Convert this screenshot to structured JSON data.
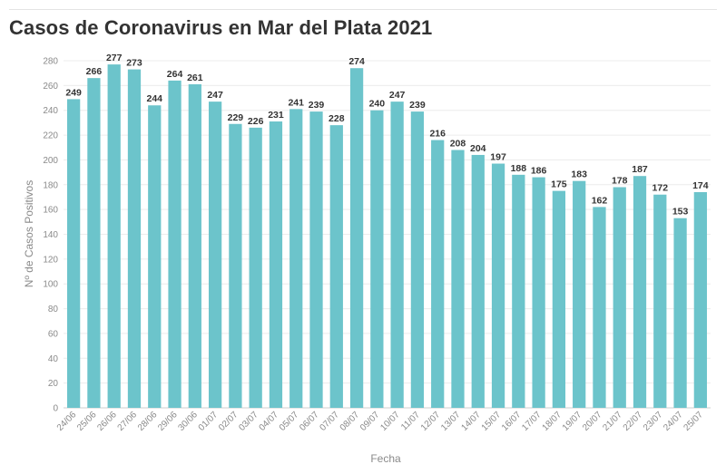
{
  "chart_data": {
    "type": "bar",
    "title": "Casos de Coronavirus en Mar del Plata 2021",
    "xlabel": "Fecha",
    "ylabel": "Nº de Casos Positivos",
    "ylim": [
      0,
      280
    ],
    "yticks": [
      0,
      20,
      40,
      60,
      80,
      100,
      120,
      140,
      160,
      180,
      200,
      220,
      240,
      260,
      280
    ],
    "grid": true,
    "bar_color": "#6cc4cb",
    "categories": [
      "24/06",
      "25/06",
      "26/06",
      "27/06",
      "28/06",
      "29/06",
      "30/06",
      "01/07",
      "02/07",
      "03/07",
      "04/07",
      "05/07",
      "06/07",
      "07/07",
      "08/07",
      "09/07",
      "10/07",
      "11/07",
      "12/07",
      "13/07",
      "14/07",
      "15/07",
      "16/07",
      "17/07",
      "18/07",
      "19/07",
      "20/07",
      "21/07",
      "22/07",
      "23/07",
      "24/07",
      "25/07"
    ],
    "values": [
      249,
      266,
      277,
      273,
      244,
      264,
      261,
      247,
      229,
      226,
      231,
      241,
      239,
      228,
      274,
      240,
      247,
      239,
      216,
      208,
      204,
      197,
      188,
      186,
      175,
      183,
      162,
      178,
      187,
      172,
      153,
      174
    ]
  }
}
